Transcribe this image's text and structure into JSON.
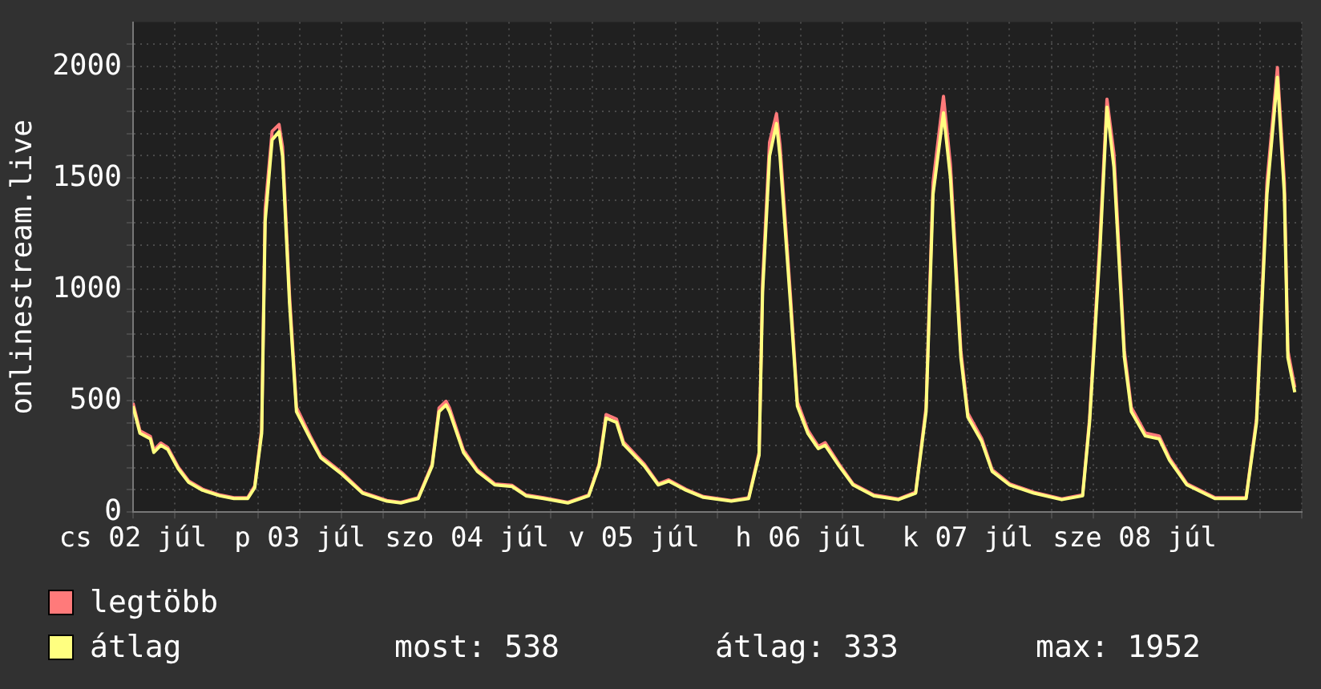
{
  "chart_data": {
    "type": "line",
    "ylabel": "onlinestream.live",
    "legend": "bottom",
    "grid": true,
    "marker": "none",
    "line_style": "solid",
    "xlim": [
      "--07-02T12:00",
      "--07-09T12:00"
    ],
    "xticks": [
      {
        "value": "--07-02T12:00",
        "label": "cs 02 júl"
      },
      {
        "value": "--07-02T18:00",
        "label": null
      },
      {
        "value": "--07-03T00:00",
        "label": null
      },
      {
        "value": "--07-03T06:00",
        "label": null
      },
      {
        "value": "--07-03T12:00",
        "label": "p 03 júl"
      },
      {
        "value": "--07-03T18:00",
        "label": null
      },
      {
        "value": "--07-04T00:00",
        "label": null
      },
      {
        "value": "--07-04T06:00",
        "label": null
      },
      {
        "value": "--07-04T12:00",
        "label": "szo 04 júl"
      },
      {
        "value": "--07-04T18:00",
        "label": null
      },
      {
        "value": "--07-05T00:00",
        "label": null
      },
      {
        "value": "--07-05T06:00",
        "label": null
      },
      {
        "value": "--07-05T12:00",
        "label": "v 05 júl"
      },
      {
        "value": "--07-05T18:00",
        "label": null
      },
      {
        "value": "--07-06T00:00",
        "label": null
      },
      {
        "value": "--07-06T06:00",
        "label": null
      },
      {
        "value": "--07-06T12:00",
        "label": "h 06 júl"
      },
      {
        "value": "--07-06T18:00",
        "label": null
      },
      {
        "value": "--07-07T00:00",
        "label": null
      },
      {
        "value": "--07-07T06:00",
        "label": null
      },
      {
        "value": "--07-07T12:00",
        "label": "k 07 júl"
      },
      {
        "value": "--07-07T18:00",
        "label": null
      },
      {
        "value": "--07-08T00:00",
        "label": null
      },
      {
        "value": "--07-08T06:00",
        "label": null
      },
      {
        "value": "--07-08T12:00",
        "label": "sze 08 júl"
      },
      {
        "value": "--07-08T18:00",
        "label": null
      },
      {
        "value": "--07-09T00:00",
        "label": null
      },
      {
        "value": "--07-09T06:00",
        "label": null
      },
      {
        "value": "--07-09T12:00",
        "label": null
      }
    ],
    "ylim": [
      0,
      2200
    ],
    "yticks": [
      0,
      {
        "value": 100,
        "label": null
      },
      {
        "value": 200,
        "label": null
      },
      {
        "value": 300,
        "label": null
      },
      {
        "value": 400,
        "label": null
      },
      500,
      {
        "value": 600,
        "label": null
      },
      {
        "value": 700,
        "label": null
      },
      {
        "value": 800,
        "label": null
      },
      {
        "value": 900,
        "label": null
      },
      1000,
      {
        "value": 1100,
        "label": null
      },
      {
        "value": 1200,
        "label": null
      },
      {
        "value": 1300,
        "label": null
      },
      {
        "value": 1400,
        "label": null
      },
      1500,
      {
        "value": 1600,
        "label": null
      },
      {
        "value": 1700,
        "label": null
      },
      {
        "value": 1800,
        "label": null
      },
      {
        "value": 1900,
        "label": null
      },
      2000,
      {
        "value": 2100,
        "label": null
      }
    ],
    "x": [
      "--07-02T12:00",
      "--07-02T13:00",
      "--07-02T14:30",
      "--07-02T15:00",
      "--07-02T16:00",
      "--07-02T17:00",
      "--07-02T18:30",
      "--07-02T20:00",
      "--07-02T22:00",
      "--07-03T00:30",
      "--07-03T02:30",
      "--07-03T04:30",
      "--07-03T05:30",
      "--07-03T06:30",
      "--07-03T07:00",
      "--07-03T08:00",
      "--07-03T09:00",
      "--07-03T09:30",
      "--07-03T10:30",
      "--07-03T11:30",
      "--07-03T13:30",
      "--07-03T15:00",
      "--07-03T18:00",
      "--07-03T21:00",
      "--07-04T00:30",
      "--07-04T02:30",
      "--07-04T05:00",
      "--07-04T07:00",
      "--07-04T08:00",
      "--07-04T09:00",
      "--07-04T09:30",
      "--07-04T11:30",
      "--07-04T13:30",
      "--07-04T16:00",
      "--07-04T18:30",
      "--07-04T20:30",
      "--07-04T23:00",
      "--07-05T02:30",
      "--07-05T05:30",
      "--07-05T07:00",
      "--07-05T08:00",
      "--07-05T09:30",
      "--07-05T10:30",
      "--07-05T13:30",
      "--07-05T15:30",
      "--07-05T17:00",
      "--07-05T19:30",
      "--07-05T22:00",
      "--07-06T02:00",
      "--07-06T04:30",
      "--07-06T06:00",
      "--07-06T06:30",
      "--07-06T07:30",
      "--07-06T08:30",
      "--07-06T09:00",
      "--07-06T10:30",
      "--07-06T11:30",
      "--07-06T13:00",
      "--07-06T14:30",
      "--07-06T15:30",
      "--07-06T17:30",
      "--07-06T19:30",
      "--07-06T22:30",
      "--07-07T02:00",
      "--07-07T04:30",
      "--07-07T06:00",
      "--07-07T07:00",
      "--07-07T08:30",
      "--07-07T09:30",
      "--07-07T11:00",
      "--07-07T12:00",
      "--07-07T14:00",
      "--07-07T15:30",
      "--07-07T18:00",
      "--07-07T21:30",
      "--07-08T01:30",
      "--07-08T04:30",
      "--07-08T05:30",
      "--07-08T07:00",
      "--07-08T08:00",
      "--07-08T09:00",
      "--07-08T10:30",
      "--07-08T11:30",
      "--07-08T13:30",
      "--07-08T15:30",
      "--07-08T17:00",
      "--07-08T19:30",
      "--07-08T23:30",
      "--07-09T04:00",
      "--07-09T05:30",
      "--07-09T07:00",
      "--07-09T08:30",
      "--07-09T09:30",
      "--07-09T10:00",
      "--07-09T11:00"
    ],
    "series": [
      {
        "name": "legtöbb",
        "color": "#ff7a7a",
        "values": [
          490,
          365,
          340,
          278,
          310,
          290,
          202,
          140,
          103,
          77,
          65,
          65,
          118,
          372,
          1360,
          1710,
          1740,
          1640,
          975,
          470,
          340,
          252,
          178,
          89,
          52,
          44,
          65,
          215,
          468,
          498,
          468,
          278,
          190,
          127,
          120,
          77,
          65,
          44,
          77,
          215,
          438,
          418,
          315,
          215,
          127,
          145,
          102,
          70,
          52,
          65,
          268,
          1030,
          1660,
          1789,
          1650,
          975,
          495,
          368,
          295,
          312,
          215,
          127,
          77,
          59,
          89,
          470,
          1480,
          1867,
          1560,
          725,
          444,
          330,
          190,
          127,
          89,
          59,
          77,
          420,
          1230,
          1854,
          1610,
          725,
          470,
          355,
          342,
          242,
          127,
          65,
          65,
          420,
          1480,
          1996,
          1480,
          725,
          560
        ]
      },
      {
        "name": "átlag",
        "color": "#ffff80",
        "values": [
          476,
          354,
          329,
          268,
          300,
          281,
          195,
          134,
          98,
          73,
          61,
          61,
          110,
          354,
          1305,
          1671,
          1708,
          1598,
          939,
          451,
          329,
          244,
          171,
          85,
          49,
          41,
          61,
          207,
          451,
          481,
          451,
          268,
          183,
          122,
          115,
          73,
          61,
          41,
          73,
          207,
          422,
          403,
          305,
          207,
          122,
          139,
          98,
          66,
          49,
          61,
          256,
          988,
          1598,
          1745,
          1598,
          939,
          476,
          354,
          285,
          300,
          207,
          122,
          73,
          56,
          85,
          451,
          1427,
          1793,
          1501,
          695,
          427,
          317,
          183,
          122,
          85,
          56,
          73,
          403,
          1183,
          1818,
          1549,
          695,
          451,
          342,
          329,
          232,
          122,
          61,
          61,
          403,
          1427,
          1952,
          1427,
          695,
          538
        ]
      }
    ],
    "annotations": [
      "most: 538",
      "átlag: 333",
      "max: 1952"
    ]
  }
}
